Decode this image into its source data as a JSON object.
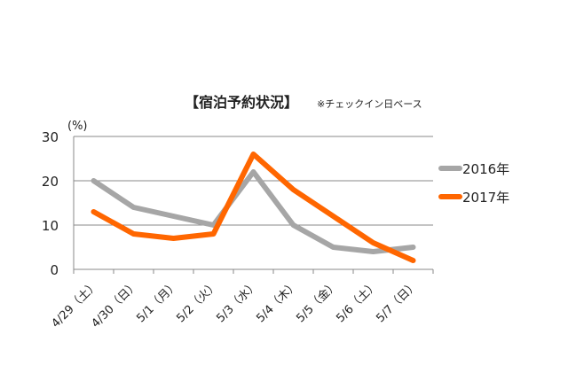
{
  "chart_data": {
    "type": "line",
    "title": "【宿泊予約状況】",
    "subtitle": "※チェックイン日ベース",
    "ylabel": "(%)",
    "xlabel": "",
    "ylim": [
      0,
      30
    ],
    "yticks": [
      "0",
      "10",
      "20",
      "30"
    ],
    "grid": true,
    "legend": "right",
    "categories": [
      "4/29（土）",
      "4/30（日）",
      "5/1（月）",
      "5/2（火）",
      "5/3（水）",
      "5/4（木）",
      "5/5（金）",
      "5/6（土）",
      "5/7（日）"
    ],
    "series": [
      {
        "name": "2016年",
        "color": "#a6a6a6",
        "values": [
          20,
          14,
          12,
          10,
          22,
          10,
          5,
          4,
          5
        ]
      },
      {
        "name": "2017年",
        "color": "#ff6600",
        "values": [
          13,
          8,
          7,
          8,
          26,
          18,
          12,
          6,
          2
        ]
      }
    ]
  }
}
